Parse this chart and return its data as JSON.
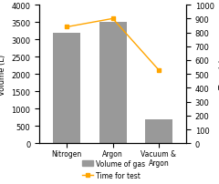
{
  "categories": [
    "Nitrogen",
    "Argon",
    "Vacuum &\nArgon"
  ],
  "bar_values": [
    3200,
    3500,
    700
  ],
  "line_values": [
    840,
    900,
    530
  ],
  "bar_color": "#999999",
  "line_color": "#FFA500",
  "ylim_left": [
    0,
    4000
  ],
  "ylim_right": [
    0,
    1000
  ],
  "ylabel_left": "Volume (L)",
  "ylabel_right": "Time (s)",
  "legend_bar_label": "Volume of gas",
  "legend_line_label": "Time for test",
  "left_yticks": [
    0,
    500,
    1000,
    1500,
    2000,
    2500,
    3000,
    3500,
    4000
  ],
  "right_yticks": [
    0,
    100,
    200,
    300,
    400,
    500,
    600,
    700,
    800,
    900,
    1000
  ],
  "figsize": [
    2.4,
    2.03
  ],
  "dpi": 100
}
